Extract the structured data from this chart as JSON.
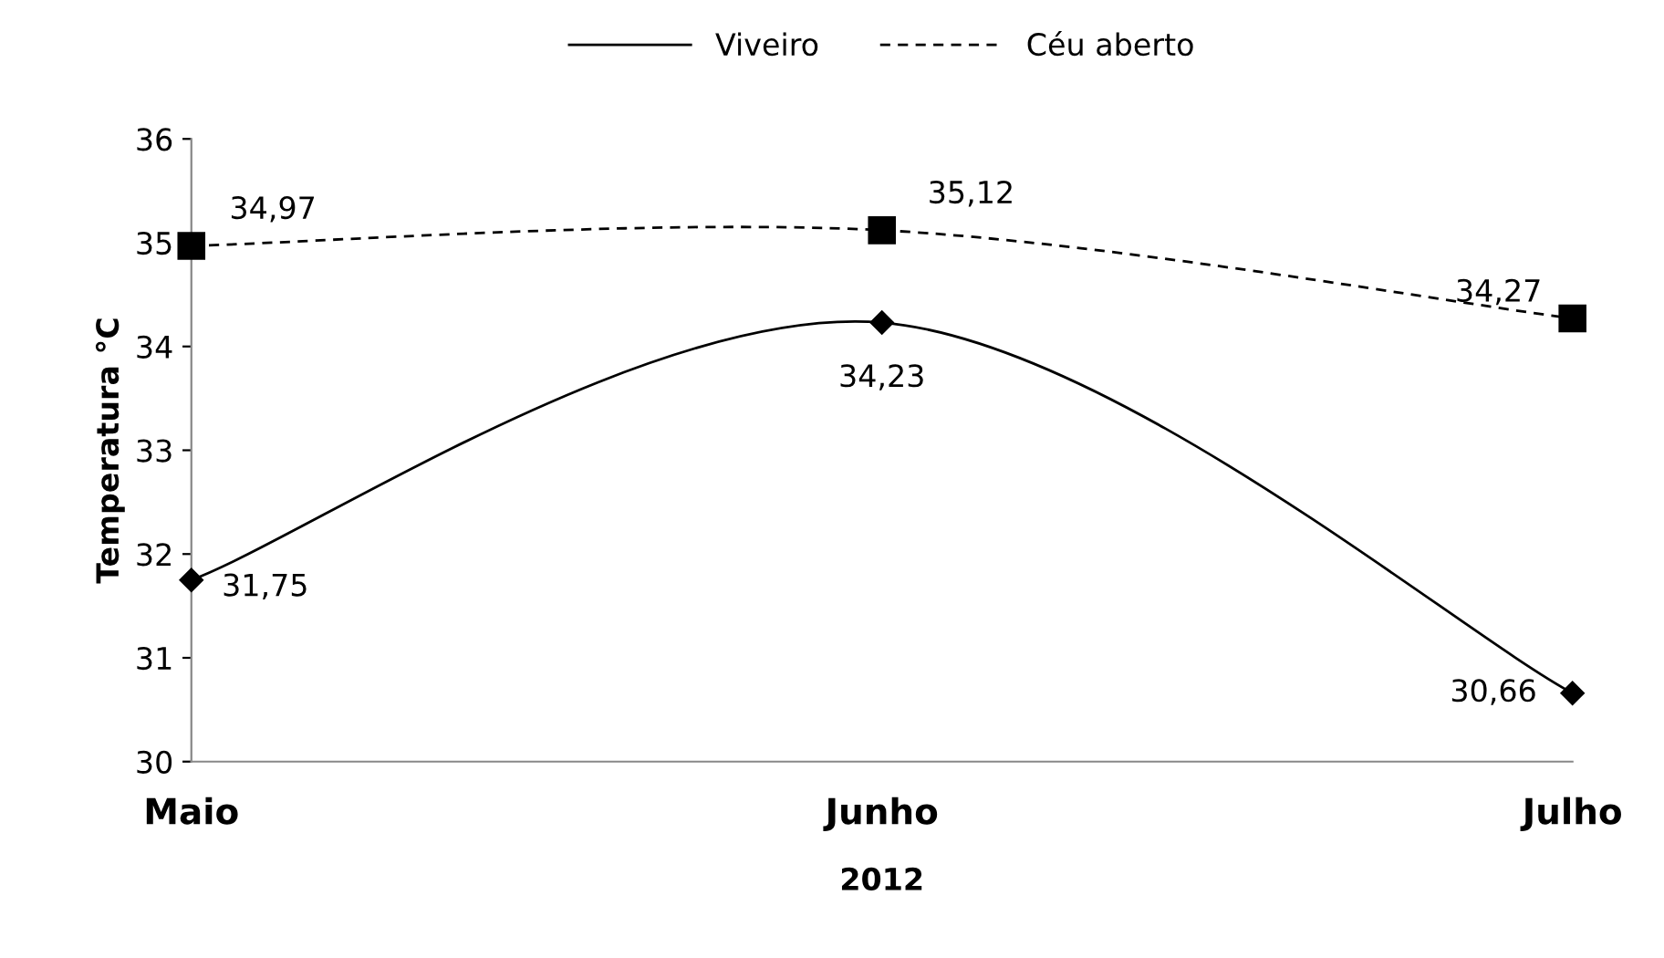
{
  "chart_data": {
    "type": "line",
    "xlabel": "2012",
    "ylabel": "Temperatura °C",
    "categories": [
      "Maio",
      "Junho",
      "Julho"
    ],
    "series": [
      {
        "name": "Viveiro",
        "color": "#000000",
        "values": [
          31.75,
          34.23,
          30.66
        ],
        "value_labels": [
          "31,75",
          "34,23",
          "30,66"
        ],
        "marker": "diamond",
        "line_style": "solid"
      },
      {
        "name": "Céu aberto",
        "color": "#000000",
        "values": [
          34.97,
          35.12,
          34.27
        ],
        "value_labels": [
          "34,97",
          "35,12",
          "34,27"
        ],
        "marker": "square",
        "line_style": "dashed"
      }
    ],
    "ylim": [
      30,
      36
    ],
    "yticks": [
      30,
      31,
      32,
      33,
      34,
      35,
      36
    ],
    "grid": false,
    "legend": "top"
  }
}
